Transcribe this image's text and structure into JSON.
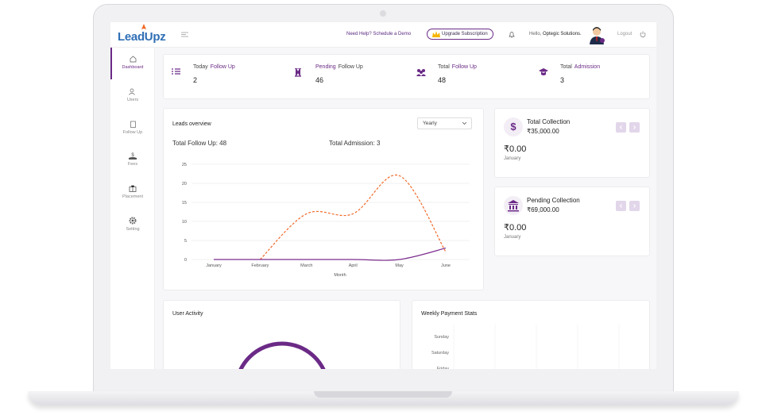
{
  "brand": "LeadUpz",
  "header": {
    "help": "Need Help? Schedule a Demo",
    "upgrade": "Upgrade Subscription",
    "greeting": "Hello,",
    "company": "Optegic Solutions.",
    "logout": "Logout"
  },
  "sidebar": [
    "Dashboard",
    "Users",
    "Follow Up",
    "Fees",
    "Placement",
    "Setting"
  ],
  "stats": [
    {
      "parts": [
        {
          "text": "Today"
        },
        {
          "text": "Follow Up",
          "em": true
        }
      ],
      "value": 2
    },
    {
      "parts": [
        {
          "text": "Pending",
          "em": true
        },
        {
          "text": "Follow Up"
        }
      ],
      "value": 46
    },
    {
      "parts": [
        {
          "text": "Total"
        },
        {
          "text": "Follow Up",
          "em": true
        }
      ],
      "value": 48
    },
    {
      "parts": [
        {
          "text": "Total"
        },
        {
          "text": "Admission",
          "em": true
        }
      ],
      "value": 3
    }
  ],
  "leads_overview": {
    "title": "Leads overview",
    "period": "Yearly",
    "total_follow_up": "Total Follow Up: 48",
    "total_admission": "Total Admission: 3",
    "chart": {
      "type": "line",
      "categories": [
        "January",
        "February",
        "March",
        "April",
        "May",
        "June"
      ],
      "x_label": "Month",
      "ylim": [
        0,
        25
      ],
      "yticks": [
        0,
        5,
        10,
        15,
        20,
        25
      ],
      "grid": true,
      "series": [
        {
          "color": "#f06a2a",
          "dashed": true,
          "values": [
            null,
            0,
            12,
            12,
            22,
            2
          ]
        },
        {
          "color": "#7b2d8e",
          "dashed": false,
          "values": [
            0,
            0,
            0,
            0,
            0,
            3
          ]
        }
      ]
    }
  },
  "collections": [
    {
      "title": "Total Collection",
      "total": "₹35,000.00",
      "amount": "₹0.00",
      "month": "January"
    },
    {
      "title": "Pending Collection",
      "total": "₹69,000.00",
      "amount": "₹0.00",
      "month": "January"
    }
  ],
  "user_activity": {
    "title": "User Activity"
  },
  "weekly_payment": {
    "title": "Weekly Payment Stats",
    "days": [
      "Sunday",
      "Saturday",
      "Friday"
    ]
  }
}
